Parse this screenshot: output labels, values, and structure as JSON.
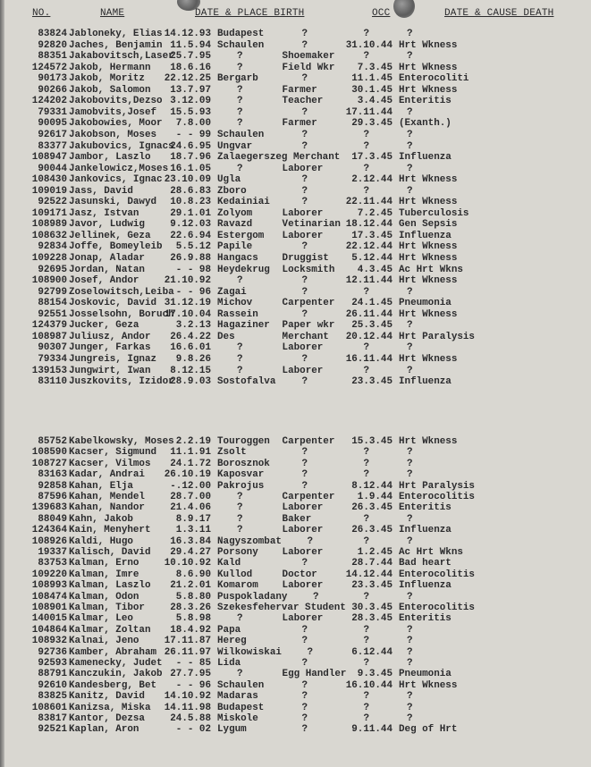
{
  "headers": {
    "no": "NO.",
    "name": "NAME",
    "birth": "DATE & PLACE BIRTH",
    "occ": "OCC",
    "death": "DATE & CAUSE DEATH"
  },
  "sections": [
    [
      [
        "83824",
        "Jabloneky, Elias",
        "14.12.93",
        "Budapest",
        "?",
        "?",
        "?"
      ],
      [
        "92820",
        "Jaches, Benjamin",
        "11.5.94",
        "Schaulen",
        "?",
        "31.10.44",
        "Hrt Wkness"
      ],
      [
        "88351",
        "Jakabovitsch,Laser",
        "25.7.95",
        "?",
        "Shoemaker",
        "?",
        "?"
      ],
      [
        "124572",
        "Jakob, Hermann",
        "18.6.16",
        "?",
        "Field Wkr",
        "7.3.45",
        "Hrt Wkness"
      ],
      [
        "90173",
        "Jakob, Moritz",
        "22.12.25",
        "Bergarb",
        "?",
        "11.1.45",
        "Enterocoliti"
      ],
      [
        "90266",
        "Jakob, Salomon",
        "13.7.97",
        "?",
        "Farmer",
        "30.1.45",
        "Hrt Wkness"
      ],
      [
        "124202",
        "Jakobovits,Dezso",
        "3.12.09",
        "?",
        "Teacher",
        "3.4.45",
        "Enteritis"
      ],
      [
        "79331",
        "Jamobvits,Josef",
        "15.5.93",
        "?",
        "?",
        "17.11.44",
        "?"
      ],
      [
        "90095",
        "Jakobowies, Moor",
        "7.8.00",
        "?",
        "Farmer",
        "29.3.45",
        "(Exanth.)"
      ],
      [
        "92617",
        "Jakobson, Moses",
        "- - 99",
        "Schaulen",
        "?",
        "?",
        "?"
      ],
      [
        "83377",
        "Jakubovics, Ignacs",
        "24.6.95",
        "Ungvar",
        "?",
        "?",
        "?"
      ],
      [
        "108947",
        "Jambor, Laszlo",
        "18.7.96",
        "Zalaegerszeg",
        "Merchant",
        "17.3.45",
        "Influenza"
      ],
      [
        "90044",
        "Jankelowicz,Moses",
        "16.1.05",
        "?",
        "Laborer",
        "?",
        "?"
      ],
      [
        "108430",
        "Jankovics, Ignac",
        "23.10.09",
        "Ugla",
        "?",
        "2.12.44",
        "Hrt Wkness"
      ],
      [
        "109019",
        "Jass, David",
        "28.6.83",
        "Zboro",
        "?",
        "?",
        "?"
      ],
      [
        "92522",
        "Jasunski, Dawyd",
        "10.8.23",
        "Kedainiai",
        "?",
        "22.11.44",
        "Hrt Wkness"
      ],
      [
        "109171",
        "Jasz, Istvan",
        "29.1.01",
        "Zolyom",
        "Laborer",
        "7.2.45",
        "Tuberculosis"
      ],
      [
        "108989",
        "Javor, Ludwig",
        "9.12.03",
        "Ravazd",
        "Vetinarian",
        "18.12.44",
        "Gen Sepsis"
      ],
      [
        "108632",
        "Jellinek, Geza",
        "22.6.94",
        "Estergom",
        "Laborer",
        "17.3.45",
        "Influenza"
      ],
      [
        "92834",
        "Joffe, Bomeyleib",
        "5.5.12",
        "Papile",
        "?",
        "22.12.44",
        "Hrt Wkness"
      ],
      [
        "109228",
        "Jonap, Aladar",
        "26.9.88",
        "Hangacs",
        "Druggist",
        "5.12.44",
        "Hrt Wkness"
      ],
      [
        "92695",
        "Jordan, Natan",
        "- - 98",
        "Heydekrug",
        "Locksmith",
        "4.3.45",
        "Ac Hrt Wkns"
      ],
      [
        "108900",
        "Josef, Andor",
        "21.10.92",
        "?",
        "?",
        "12.11.44",
        "Hrt Wkness"
      ],
      [
        "92799",
        "Zoselowitsch,Leiba",
        "- - 96",
        "Zagai",
        "?",
        "?",
        "?"
      ],
      [
        "88154",
        "Joskovic, David",
        "31.12.19",
        "Michov",
        "Carpenter",
        "24.1.45",
        "Pneumonia"
      ],
      [
        "92551",
        "Josselsohn, Boruch",
        "17.10.04",
        "Rassein",
        "?",
        "26.11.44",
        "Hrt Wkness"
      ],
      [
        "124379",
        "Jucker, Geza",
        "3.2.13",
        "Hagaziner",
        "Paper wkr",
        "25.3.45",
        "?"
      ],
      [
        "108987",
        "Juliusz, Andor",
        "26.4.22",
        "Des",
        "Merchant",
        "20.12.44",
        "Hrt Paralysis"
      ],
      [
        "90307",
        "Junger, Farkas",
        "16.6.01",
        "?",
        "Laborer",
        "?",
        "?"
      ],
      [
        "79334",
        "Jungreis, Ignaz",
        "9.8.26",
        "?",
        "?",
        "16.11.44",
        "Hrt Wkness"
      ],
      [
        "139153",
        "Jungwirt, Iwan",
        "8.12.15",
        "?",
        "Laborer",
        "?",
        "?"
      ],
      [
        "83110",
        "Juszkovits, Izidor",
        "28.9.03",
        "Sostofalva",
        "?",
        "23.3.45",
        "Influenza"
      ]
    ],
    [
      [
        "85752",
        "Kabelkowsky, Moses",
        "2.2.19",
        "Touroggen",
        "Carpenter",
        "15.3.45",
        "Hrt Wkness"
      ],
      [
        "108590",
        "Kacser, Sigmund",
        "11.1.91",
        "Zsolt",
        "?",
        "?",
        "?"
      ],
      [
        "108727",
        "Kacser, Vilmos",
        "24.1.72",
        "Borosznok",
        "?",
        "?",
        "?"
      ],
      [
        "83163",
        "Kadar, Andrai",
        "26.10.19",
        "Kaposvar",
        "?",
        "?",
        "?"
      ],
      [
        "92858",
        "Kahan, Elja",
        "-.12.00",
        "Pakrojus",
        "?",
        "8.12.44",
        "Hrt Paralysis"
      ],
      [
        "87596",
        "Kahan, Mendel",
        "28.7.00",
        "?",
        "Carpenter",
        "1.9.44",
        "Enterocolitis"
      ],
      [
        "139683",
        "Kahan, Nandor",
        "21.4.06",
        "?",
        "Laborer",
        "26.3.45",
        "Enteritis"
      ],
      [
        "88049",
        "Kahn, Jakob",
        "8.9.17",
        "?",
        "Baker",
        "?",
        "?"
      ],
      [
        "124364",
        "Kain, Menyhert",
        "1.3.11",
        "?",
        "Laborer",
        "26.3.45",
        "Influenza"
      ],
      [
        "108926",
        "Kaldi, Hugo",
        "16.3.84",
        "Nagyszombat",
        "?",
        "?",
        "?"
      ],
      [
        "19337",
        "Kalisch, David",
        "29.4.27",
        "Porsony",
        "Laborer",
        "1.2.45",
        "Ac Hrt Wkns"
      ],
      [
        "83753",
        "Kalman, Erno",
        "10.10.92",
        "Kald",
        "?",
        "28.7.44",
        "Bad heart"
      ],
      [
        "109220",
        "Kalman, Imre",
        "8.6.90",
        "Kullod",
        "Doctor",
        "14.12.44",
        "Enterocolitis"
      ],
      [
        "108993",
        "Kalman, Laszlo",
        "21.2.01",
        "Komarom",
        "Laborer",
        "23.3.45",
        "Influenza"
      ],
      [
        "108474",
        "Kalman, Odon",
        "5.8.80",
        "Puspokladany",
        "?",
        "?",
        "?"
      ],
      [
        "108901",
        "Kalman, Tibor",
        "28.3.26",
        "Szekesfehervar",
        "Student",
        "30.3.45",
        "Enterocolitis"
      ],
      [
        "140015",
        "Kalmar, Leo",
        "5.8.98",
        "?",
        "Laborer",
        "28.3.45",
        "Enteritis"
      ],
      [
        "104864",
        "Kalmar, Zoltan",
        "18.4.92",
        "Papa",
        "?",
        "?",
        "?"
      ],
      [
        "108932",
        "Kalnai, Jeno",
        "17.11.87",
        "Hereg",
        "?",
        "?",
        "?"
      ],
      [
        "92736",
        "Kamber, Abraham",
        "26.11.97",
        "Wilkowiskai",
        "?",
        "6.12.44",
        "?"
      ],
      [
        "92593",
        "Kamenecky, Judet",
        "- - 85",
        "Lida",
        "?",
        "?",
        "?"
      ],
      [
        "88791",
        "Kanczukin, Jakob",
        "27.7.95",
        "?",
        "Egg Handler",
        "9.3.45",
        "Pneumonia"
      ],
      [
        "92610",
        "Kandesberg, Bet",
        "- - 96",
        "Schaulen",
        "?",
        "16.10.44",
        "Hrt Wkness"
      ],
      [
        "83825",
        "Kanitz, David",
        "14.10.92",
        "Madaras",
        "?",
        "?",
        "?"
      ],
      [
        "108601",
        "Kanizsa, Miska",
        "14.11.98",
        "Budapest",
        "?",
        "?",
        "?"
      ],
      [
        "83817",
        "Kantor, Dezsa",
        "24.5.88",
        "Miskole",
        "?",
        "?",
        "?"
      ],
      [
        "92521",
        "Kaplan, Aron",
        "- - 02",
        "Lygum",
        "?",
        "9.11.44",
        "Deg of Hrt"
      ]
    ]
  ],
  "colors": {
    "paper": "#d9d7d1",
    "ink": "#2b2b2d"
  }
}
